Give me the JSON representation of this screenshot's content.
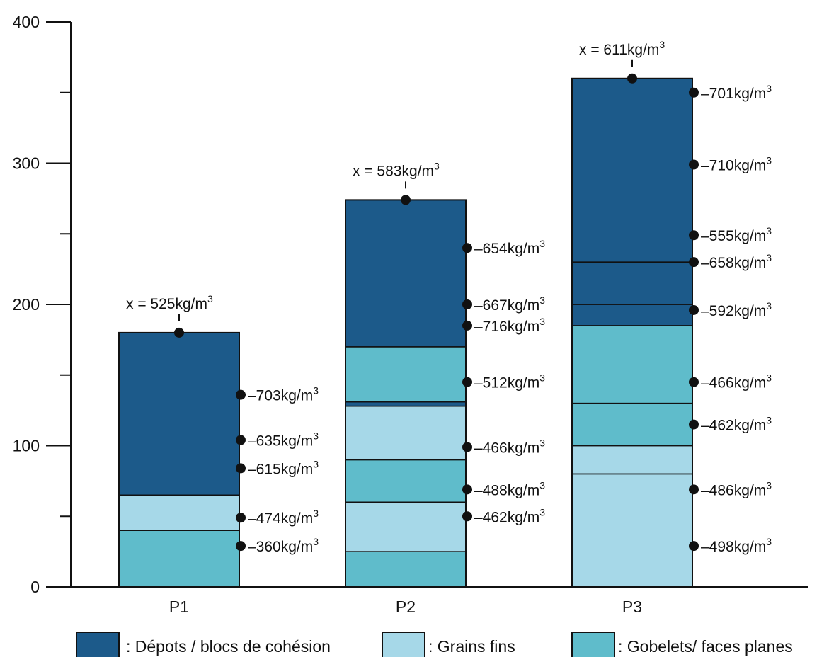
{
  "chart_data": {
    "type": "bar",
    "stacked": true,
    "ylim": [
      0,
      400
    ],
    "yticks": [
      0,
      100,
      200,
      300,
      400
    ],
    "yminor": [
      50,
      150,
      250,
      350
    ],
    "categories": [
      "P1",
      "P2",
      "P3"
    ],
    "colors": {
      "Dépots / blocs de cohésion": "#1c5a8a",
      "Grains fins": "#a6d8e8",
      "Gobelets/ faces planes": "#5fbccb"
    },
    "legend": [
      {
        "key": "Dépots / blocs de cohésion",
        "label": ": Dépots / blocs de cohésion"
      },
      {
        "key": "Grains fins",
        "label": ":  Grains fins"
      },
      {
        "key": "Gobelets/ faces planes",
        "label": ":  Gobelets/ faces planes"
      }
    ],
    "bars": [
      {
        "category": "P1",
        "total": 180,
        "mean_label": {
          "prefix": "x = 525kg/m",
          "sup": "3"
        },
        "segments": [
          {
            "from": 0,
            "to": 40,
            "type": "Gobelets/ faces planes"
          },
          {
            "from": 40,
            "to": 65,
            "type": "Grains fins"
          },
          {
            "from": 65,
            "to": 180,
            "type": "Dépots / blocs de cohésion"
          }
        ],
        "points": [
          {
            "depth": 136,
            "text": "–703kg/m",
            "sup": "3"
          },
          {
            "depth": 104,
            "text": "–635kg/m",
            "sup": "3"
          },
          {
            "depth": 84,
            "text": "–615kg/m",
            "sup": "3"
          },
          {
            "depth": 49,
            "text": "–474kg/m",
            "sup": "3"
          },
          {
            "depth": 29,
            "text": "–360kg/m",
            "sup": "3"
          }
        ]
      },
      {
        "category": "P2",
        "total": 274,
        "mean_label": {
          "prefix": "x = 583kg/m",
          "sup": "3"
        },
        "segments": [
          {
            "from": 0,
            "to": 25,
            "type": "Gobelets/ faces planes"
          },
          {
            "from": 25,
            "to": 60,
            "type": "Grains fins"
          },
          {
            "from": 60,
            "to": 90,
            "type": "Gobelets/ faces planes"
          },
          {
            "from": 90,
            "to": 128,
            "type": "Grains fins"
          },
          {
            "from": 128,
            "to": 131,
            "type": "Dépots / blocs de cohésion"
          },
          {
            "from": 131,
            "to": 170,
            "type": "Gobelets/ faces planes"
          },
          {
            "from": 170,
            "to": 274,
            "type": "Dépots / blocs de cohésion"
          }
        ],
        "points": [
          {
            "depth": 240,
            "text": "–654kg/m",
            "sup": "3"
          },
          {
            "depth": 200,
            "text": "–667kg/m",
            "sup": "3"
          },
          {
            "depth": 185,
            "text": "–716kg/m",
            "sup": "3"
          },
          {
            "depth": 145,
            "text": "–512kg/m",
            "sup": "3"
          },
          {
            "depth": 99,
            "text": "–466kg/m",
            "sup": "3"
          },
          {
            "depth": 69,
            "text": "–488kg/m",
            "sup": "3"
          },
          {
            "depth": 50,
            "text": "–462kg/m",
            "sup": "3"
          }
        ]
      },
      {
        "category": "P3",
        "total": 360,
        "mean_label": {
          "prefix": "x = 611kg/m",
          "sup": "3"
        },
        "segments": [
          {
            "from": 0,
            "to": 80,
            "type": "Grains fins"
          },
          {
            "from": 80,
            "to": 100,
            "type": "Grains fins"
          },
          {
            "from": 100,
            "to": 130,
            "type": "Gobelets/ faces planes"
          },
          {
            "from": 130,
            "to": 185,
            "type": "Gobelets/ faces planes"
          },
          {
            "from": 185,
            "to": 200,
            "type": "Dépots / blocs de cohésion"
          },
          {
            "from": 200,
            "to": 230,
            "type": "Dépots / blocs de cohésion"
          },
          {
            "from": 230,
            "to": 360,
            "type": "Dépots / blocs de cohésion"
          }
        ],
        "points": [
          {
            "depth": 350,
            "text": "–701kg/m",
            "sup": "3"
          },
          {
            "depth": 299,
            "text": "–710kg/m",
            "sup": "3"
          },
          {
            "depth": 249,
            "text": "–555kg/m",
            "sup": "3"
          },
          {
            "depth": 230,
            "text": "–658kg/m",
            "sup": "3"
          },
          {
            "depth": 196,
            "text": "–592kg/m",
            "sup": "3"
          },
          {
            "depth": 145,
            "text": "–466kg/m",
            "sup": "3"
          },
          {
            "depth": 115,
            "text": "–462kg/m",
            "sup": "3"
          },
          {
            "depth": 69,
            "text": "–486kg/m",
            "sup": "3"
          },
          {
            "depth": 29,
            "text": "–498kg/m",
            "sup": "3"
          }
        ]
      }
    ]
  }
}
